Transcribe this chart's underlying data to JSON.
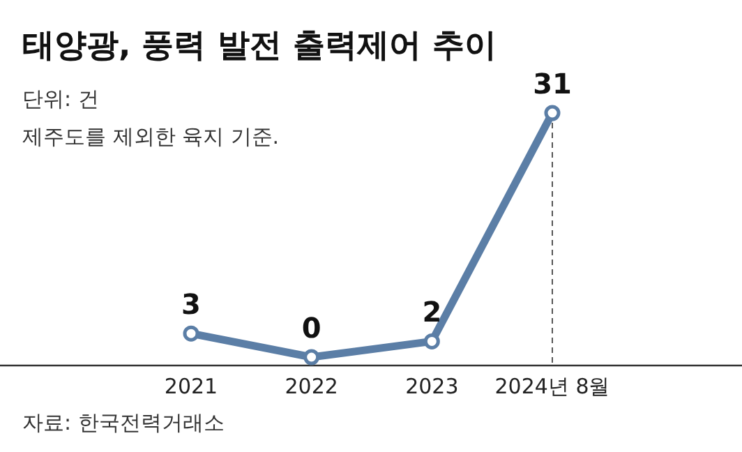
{
  "chart_data": {
    "type": "line",
    "title": "태양광, 풍력 발전 출력제어 추이",
    "subtitle": "단위: 건",
    "annotations": [
      "제주도를 제외한 육지 기준.",
      "자료: 한국전력거래소"
    ],
    "categories": [
      "2021",
      "2022",
      "2023",
      "2024년 8월"
    ],
    "series": [
      {
        "color": "#5b7ea6",
        "values": [
          3,
          0,
          2,
          31
        ]
      }
    ],
    "data_labels": true,
    "marker": "circle",
    "line_style": "solid",
    "ref_lines": [
      {
        "axis": "x",
        "value": "2024년 8월",
        "line_style": "dashed",
        "color": "#555555"
      }
    ]
  }
}
